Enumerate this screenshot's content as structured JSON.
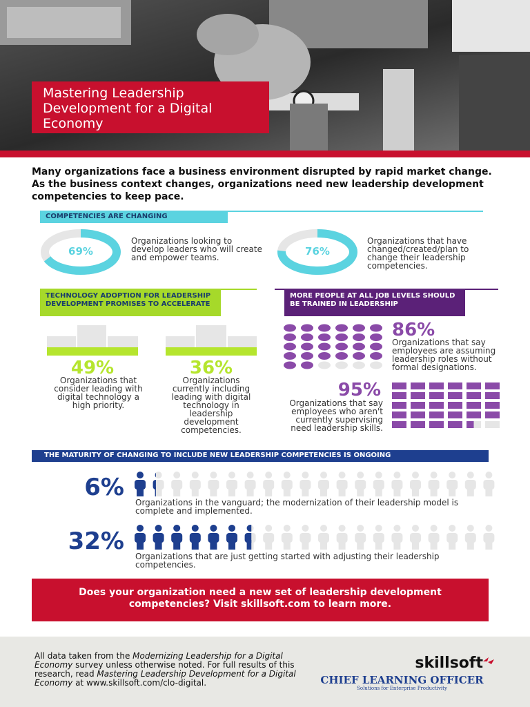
{
  "header": {
    "title": "Mastering Leadership Development for a Digital Economy"
  },
  "intro": "Many organizations face a business environment disrupted by rapid market change. As the business context changes, organizations need new leadership development competencies to keep pace.",
  "competencies": {
    "title": "COMPETENCIES ARE CHANGING",
    "items": [
      {
        "value": 69,
        "label": "69%",
        "text": "Organizations looking to develop leaders who will create and empower teams."
      },
      {
        "value": 76,
        "label": "76%",
        "text": "Organizations that have changed/created/plan to change their leadership competencies."
      }
    ]
  },
  "technology": {
    "title": "TECHNOLOGY ADOPTION FOR LEADERSHIP DEVELOPMENT PROMISES TO ACCELERATE",
    "items": [
      {
        "label": "49%",
        "text": "Organizations that consider leading with digital technology a high priority."
      },
      {
        "label": "36%",
        "text": "Organizations currently including leading with digital technology in leadership development competencies."
      }
    ]
  },
  "training": {
    "title": "MORE PEOPLE AT ALL JOB LEVELS SHOULD BE TRAINED IN LEADERSHIP",
    "items": [
      {
        "value": 86,
        "label": "86%",
        "text": "Organizations that say employees are assuming leadership roles without formal designations."
      },
      {
        "value": 95,
        "label": "95%",
        "text": "Organizations that say employees who aren't currently supervising need leadership skills."
      }
    ]
  },
  "maturity": {
    "title": "THE MATURITY OF CHANGING TO INCLUDE NEW LEADERSHIP COMPETENCIES IS ONGOING",
    "items": [
      {
        "value": 6,
        "label": "6%",
        "text": "Organizations in the vanguard; the modernization of their leadership model is complete and implemented."
      },
      {
        "value": 32,
        "label": "32%",
        "text": "Organizations that are just getting started with adjusting their leadership competencies."
      }
    ]
  },
  "cta": "Does your organization need a new set of leadership development competencies? Visit skillsoft.com to learn more.",
  "footer": {
    "note": [
      "All data taken from the ",
      "Modernizing Leadership for a Digital Economy",
      " survey unless otherwise noted. For full results of this research, read ",
      "Mastering Leadership Development for a Digital Economy",
      " at www.skillsoft.com/clo-digital."
    ],
    "logo1": "skillsoft",
    "logo2": "CHIEF LEARNING OFFICER",
    "logo2_tagline": "Solutions for Enterprise Productivity"
  }
}
